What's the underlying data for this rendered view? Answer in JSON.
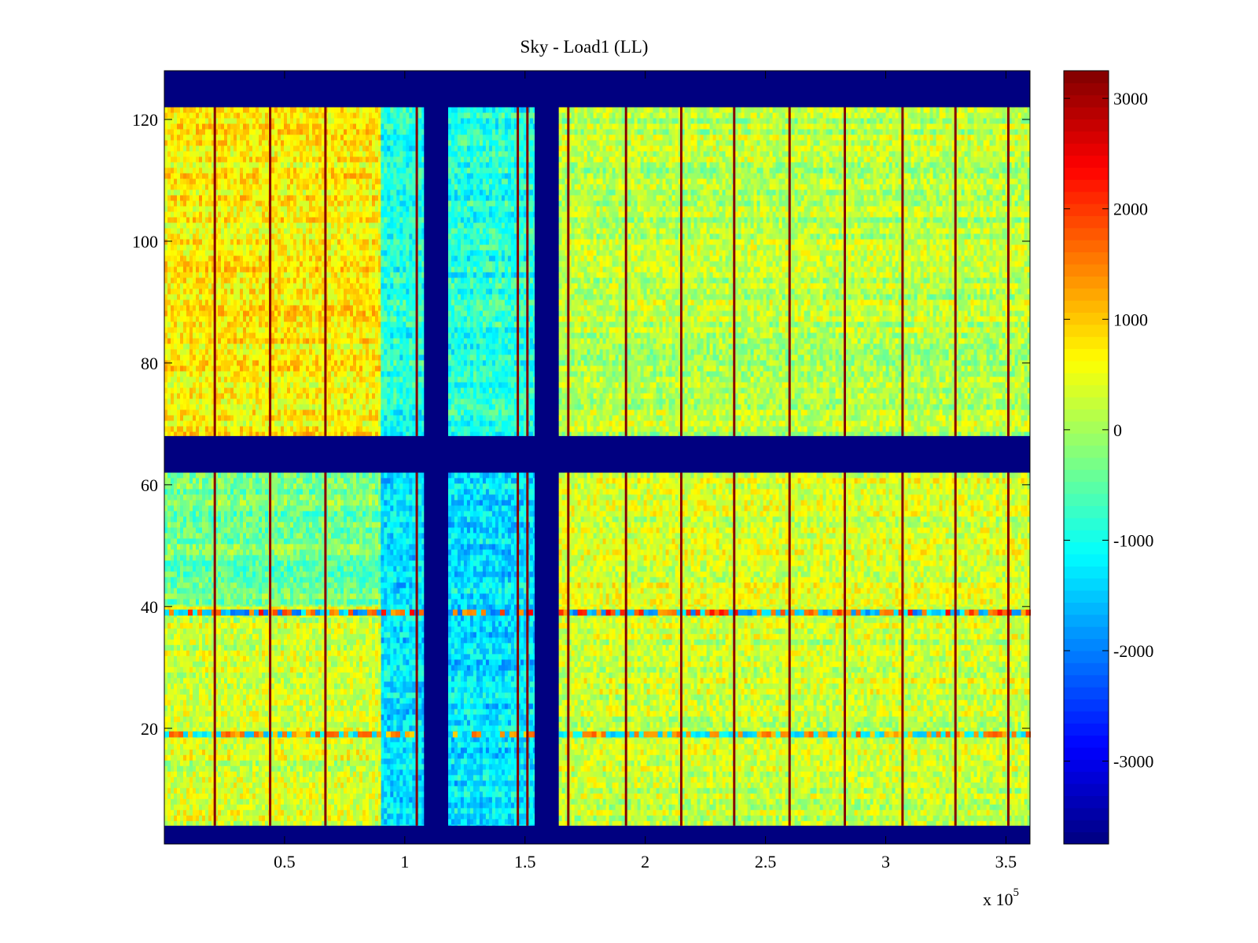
{
  "chart_data": {
    "type": "heatmap",
    "title": "Sky - Load1 (LL)",
    "xlabel": "",
    "ylabel": "",
    "x_multiplier_label": "x 10",
    "x_multiplier_exponent": "5",
    "xlim": [
      0,
      3.6
    ],
    "ylim": [
      1,
      128
    ],
    "x_ticks": [
      0.5,
      1,
      1.5,
      2,
      2.5,
      3,
      3.5
    ],
    "x_tick_labels": [
      "0.5",
      "1",
      "1.5",
      "2",
      "2.5",
      "3",
      "3.5"
    ],
    "y_ticks": [
      20,
      40,
      60,
      80,
      100,
      120
    ],
    "y_tick_labels": [
      "20",
      "40",
      "60",
      "80",
      "100",
      "120"
    ],
    "colorbar": {
      "colormap": "jet",
      "clim": [
        -3750,
        3250
      ],
      "ticks": [
        3000,
        2000,
        1000,
        0,
        -1000,
        -2000,
        -3000
      ],
      "tick_labels": [
        "3000",
        "2000",
        "1000",
        "0",
        "-1000",
        "-2000",
        "-3000"
      ]
    },
    "background_value": -3750,
    "masked_y_bands": [
      [
        1,
        4
      ],
      [
        62,
        68
      ],
      [
        122,
        128
      ]
    ],
    "masked_x_bands": [
      [
        1.08,
        1.18
      ],
      [
        1.54,
        1.64
      ]
    ],
    "regions": [
      {
        "x": [
          0,
          0.9
        ],
        "y": [
          68,
          122
        ],
        "value": 700
      },
      {
        "x": [
          0.9,
          1.08
        ],
        "y": [
          68,
          122
        ],
        "value": -900
      },
      {
        "x": [
          1.18,
          1.54
        ],
        "y": [
          68,
          122
        ],
        "value": -900
      },
      {
        "x": [
          1.64,
          3.6
        ],
        "y": [
          68,
          122
        ],
        "value": 150
      },
      {
        "x": [
          0,
          0.9
        ],
        "y": [
          40,
          62
        ],
        "value": -300
      },
      {
        "x": [
          0.9,
          1.08
        ],
        "y": [
          4,
          62
        ],
        "value": -1300
      },
      {
        "x": [
          1.18,
          1.54
        ],
        "y": [
          4,
          62
        ],
        "value": -1300
      },
      {
        "x": [
          1.64,
          3.6
        ],
        "y": [
          40,
          62
        ],
        "value": 400
      },
      {
        "x": [
          0,
          0.9
        ],
        "y": [
          4,
          40
        ],
        "value": 300
      },
      {
        "x": [
          1.64,
          3.6
        ],
        "y": [
          4,
          40
        ],
        "value": 250
      }
    ],
    "spike_columns_x": [
      0.21,
      0.44,
      0.67,
      1.05,
      1.47,
      1.51,
      1.68,
      1.92,
      2.15,
      2.37,
      2.6,
      2.83,
      3.07,
      3.29,
      3.51
    ],
    "spike_value": 3200,
    "anomaly_rows": [
      {
        "y": 39,
        "value": 2400
      },
      {
        "y": 19,
        "value": 1800
      }
    ]
  }
}
